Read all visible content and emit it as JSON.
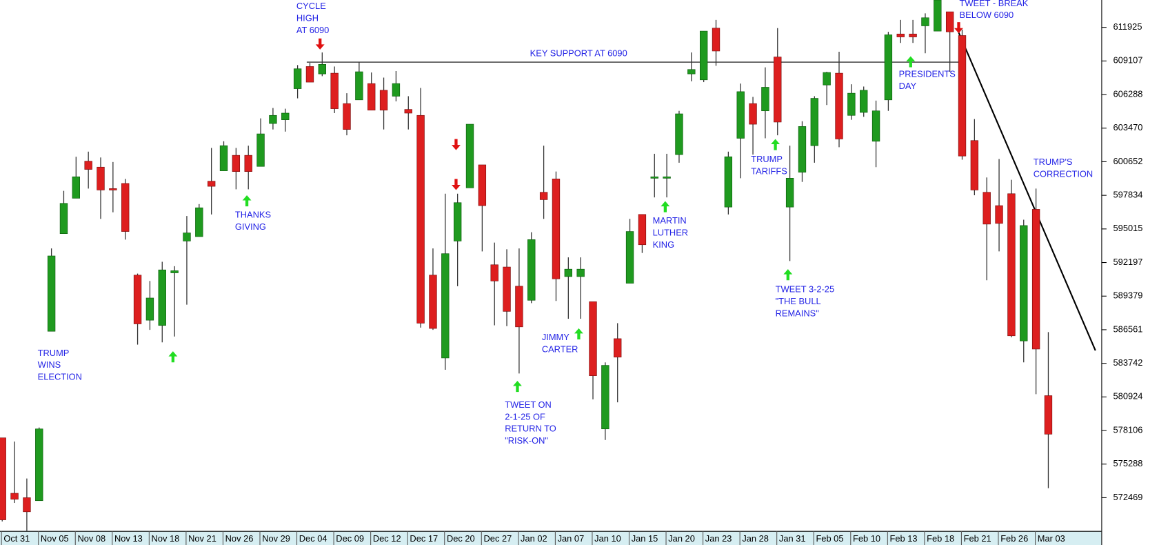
{
  "chart_data": {
    "type": "candlestick",
    "categories": [
      "Oct 31",
      null,
      null,
      "Nov 05",
      null,
      null,
      "Nov 08",
      null,
      null,
      "Nov 13",
      null,
      null,
      "Nov 18",
      null,
      null,
      "Nov 21",
      null,
      null,
      "Nov 26",
      null,
      null,
      "Nov 29",
      null,
      null,
      "Dec 04",
      null,
      null,
      "Dec 09",
      null,
      null,
      "Dec 12",
      null,
      null,
      "Dec 17",
      null,
      null,
      "Dec 20",
      null,
      null,
      "Dec 27",
      null,
      null,
      "Jan 02",
      null,
      null,
      "Jan 07",
      null,
      null,
      "Jan 10",
      null,
      null,
      "Jan 15",
      null,
      null,
      "Jan 20",
      null,
      null,
      "Jan 23",
      null,
      null,
      "Jan 28",
      null,
      null,
      "Jan 31",
      null,
      null,
      "Feb 05",
      null,
      null,
      "Feb 10",
      null,
      null,
      "Feb 13",
      null,
      null,
      "Feb 18",
      null,
      null,
      "Feb 21",
      null,
      null,
      "Feb 26",
      null,
      null,
      "Mar 03",
      null
    ],
    "open": [
      577490,
      572840,
      572470,
      572220,
      586430,
      594620,
      597590,
      600700,
      600200,
      598400,
      598830,
      591140,
      587360,
      586920,
      591330,
      594000,
      594370,
      599020,
      599890,
      601190,
      601190,
      600260,
      603860,
      604170,
      606780,
      608640,
      608020,
      608080,
      605530,
      605840,
      607210,
      606650,
      606150,
      605040,
      604540,
      591140,
      584190,
      594000,
      598460,
      600390,
      592010,
      591820,
      590210,
      589030,
      598090,
      599210,
      591020,
      591020,
      588910,
      578240,
      585810,
      590460,
      596230,
      599270,
      599270,
      601250,
      608020,
      607520,
      611860,
      596850,
      602620,
      605530,
      604920,
      609440,
      596850,
      599770,
      602000,
      607090,
      608080,
      604540,
      604790,
      602370,
      605840,
      611370,
      611370,
      612050,
      611610,
      613230,
      611240,
      602430,
      598090,
      596970,
      597970,
      585620,
      596660,
      581030
    ],
    "high": [
      577490,
      577180,
      574080,
      578360,
      593380,
      598210,
      601070,
      601500,
      601010,
      600630,
      599210,
      591270,
      590650,
      592260,
      591890,
      596100,
      597100,
      601810,
      602370,
      601810,
      602000,
      604290,
      605160,
      605100,
      608760,
      608950,
      609820,
      608640,
      606400,
      609010,
      608140,
      607710,
      608260,
      606150,
      606840,
      593380,
      597970,
      597970,
      603800,
      600390,
      593870,
      593310,
      593380,
      594740,
      602000,
      599830,
      592630,
      592630,
      588910,
      583820,
      587110,
      595860,
      596230,
      601320,
      601320,
      604920,
      609820,
      611610,
      612550,
      601500,
      607210,
      606090,
      608570,
      611860,
      602000,
      604050,
      606150,
      608200,
      609880,
      607150,
      606960,
      605780,
      611550,
      612550,
      612550,
      613100,
      614220,
      613230,
      611740,
      604230,
      599330,
      600880,
      599140,
      595790,
      598400,
      586360
    ],
    "low": [
      570480,
      572030,
      569680,
      572220,
      586430,
      594620,
      597590,
      598400,
      595860,
      596410,
      594120,
      585310,
      586550,
      585500,
      585990,
      588660,
      594370,
      596230,
      599890,
      598340,
      598340,
      600260,
      603360,
      603180,
      605970,
      607330,
      607830,
      604730,
      602870,
      605840,
      604980,
      603360,
      605720,
      603360,
      586740,
      586550,
      583200,
      590210,
      598460,
      593130,
      586930,
      586860,
      582890,
      588790,
      595860,
      588970,
      587480,
      587480,
      580720,
      577310,
      580470,
      590460,
      593000,
      597660,
      597660,
      600570,
      607400,
      607330,
      608700,
      596230,
      599270,
      601250,
      602620,
      602870,
      592320,
      598960,
      600570,
      605410,
      601870,
      604170,
      604420,
      600200,
      604920,
      610620,
      610620,
      609750,
      611610,
      608200,
      600820,
      597840,
      590710,
      593130,
      585930,
      583820,
      581150,
      573270
    ],
    "close": [
      570610,
      572340,
      571290,
      578240,
      592750,
      597160,
      599390,
      600010,
      598280,
      598280,
      594800,
      587050,
      589220,
      591580,
      591510,
      594680,
      596790,
      598590,
      602000,
      599830,
      599830,
      602990,
      604540,
      604730,
      608450,
      607330,
      608820,
      605100,
      603360,
      608200,
      604980,
      604980,
      607210,
      604730,
      587110,
      586670,
      592940,
      597220,
      603800,
      596970,
      590650,
      588100,
      586800,
      594120,
      597470,
      590830,
      591640,
      591640,
      582700,
      583570,
      584260,
      594800,
      593690,
      599390,
      599390,
      604670,
      608390,
      611610,
      609940,
      601070,
      606530,
      603800,
      606900,
      603980,
      599270,
      603610,
      605970,
      608140,
      602560,
      606400,
      606650,
      604920,
      611300,
      611120,
      611120,
      612730,
      614220,
      611550,
      601130,
      598280,
      595420,
      595480,
      586050,
      595300,
      584940,
      577800
    ],
    "ylim": [
      569680,
      614220
    ],
    "yticks": [
      572469,
      575288,
      578106,
      580924,
      583742,
      586561,
      589379,
      592197,
      595015,
      597834,
      600652,
      603470,
      606288,
      609107,
      611925
    ],
    "up_color": "#1f9a1f",
    "down_color": "#dd1f1f",
    "annotation_color": "#2424e6",
    "annotations": [
      [
        "CYCLE",
        "HIGH",
        "AT 6090"
      ],
      [
        "KEY SUPPORT AT 6090"
      ],
      [
        "TWEET - BREAK",
        "BELOW 6090"
      ],
      [
        "TRUMP",
        "WINS",
        "ELECTION"
      ],
      [
        "THANKS",
        "GIVING"
      ],
      [
        "TWEET ON",
        "2-1-25 OF",
        "RETURN TO",
        "\"RISK-ON\""
      ],
      [
        "JIMMY",
        "CARTER"
      ],
      [
        "MARTIN",
        "LUTHER",
        "KING"
      ],
      [
        "TRUMP",
        "TARIFFS"
      ],
      [
        "TWEET 3-2-25",
        "\"THE BULL",
        "REMAINS\""
      ],
      [
        "PRESIDENTS",
        "DAY"
      ],
      [
        "TRUMP'S",
        "CORRECTION"
      ]
    ]
  }
}
